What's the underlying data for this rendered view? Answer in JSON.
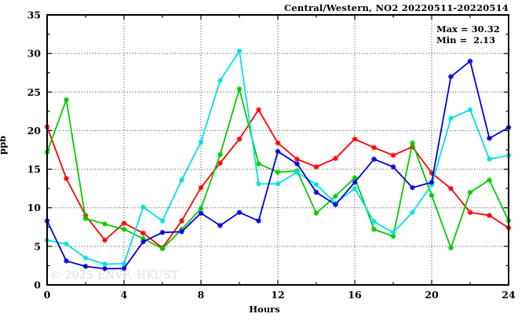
{
  "header": {
    "title": "Central/Western, NO2 20220511-20220514"
  },
  "annotations": {
    "max_label": "Max = 30.32",
    "min_label": "Min =  2.13"
  },
  "watermark": "© 2025 ENVF, HKUST",
  "chart_data": {
    "type": "line",
    "title": "Central/Western, NO2 20220511-20220514",
    "xlabel": "Hours",
    "ylabel": "ppb",
    "xlim": [
      0,
      24
    ],
    "ylim": [
      0,
      35
    ],
    "x_major_ticks": [
      0,
      4,
      8,
      12,
      16,
      20,
      24
    ],
    "x_minor_step": 2,
    "y_major_ticks": [
      0,
      5,
      10,
      15,
      20,
      25,
      30,
      35
    ],
    "y_minor_step": 2.5,
    "grid": "dotted-at-major-ticks",
    "legend_position": "none",
    "max_value": 30.32,
    "min_value": 2.13,
    "x": [
      0,
      1,
      2,
      3,
      4,
      5,
      6,
      7,
      8,
      9,
      10,
      11,
      12,
      13,
      14,
      15,
      16,
      17,
      18,
      19,
      20,
      21,
      22,
      23,
      24
    ],
    "series": [
      {
        "name": "series-red",
        "color": "#ff0000",
        "values": [
          20.5,
          13.8,
          9.0,
          5.8,
          8.0,
          6.7,
          4.8,
          8.3,
          12.6,
          15.8,
          18.9,
          22.7,
          18.4,
          16.3,
          15.3,
          16.4,
          18.9,
          17.8,
          16.8,
          17.9,
          14.5,
          12.5,
          9.4,
          9.0,
          7.4
        ]
      },
      {
        "name": "series-green",
        "color": "#00cc00",
        "values": [
          17.2,
          24.0,
          8.6,
          7.9,
          7.2,
          6.0,
          4.7,
          7.2,
          9.9,
          16.9,
          25.4,
          15.7,
          14.6,
          14.8,
          9.3,
          11.5,
          13.9,
          7.2,
          6.3,
          18.4,
          11.6,
          4.8,
          12.0,
          13.6,
          8.3
        ]
      },
      {
        "name": "series-cyan",
        "color": "#00e0e0",
        "values": [
          5.8,
          5.3,
          3.5,
          2.7,
          2.75,
          10.1,
          8.3,
          13.6,
          18.5,
          26.5,
          30.32,
          13.1,
          13.1,
          14.6,
          13.0,
          10.6,
          12.5,
          8.2,
          6.8,
          9.4,
          13.0,
          21.6,
          22.7,
          16.3,
          16.8
        ]
      },
      {
        "name": "series-blue",
        "color": "#0000dd",
        "values": [
          8.3,
          3.1,
          2.4,
          2.1,
          2.13,
          5.6,
          6.8,
          6.9,
          9.3,
          7.7,
          9.4,
          8.3,
          17.3,
          15.7,
          12.0,
          10.4,
          13.3,
          16.3,
          15.3,
          12.6,
          13.3,
          27.0,
          29.0,
          19.0,
          20.4
        ]
      }
    ]
  }
}
